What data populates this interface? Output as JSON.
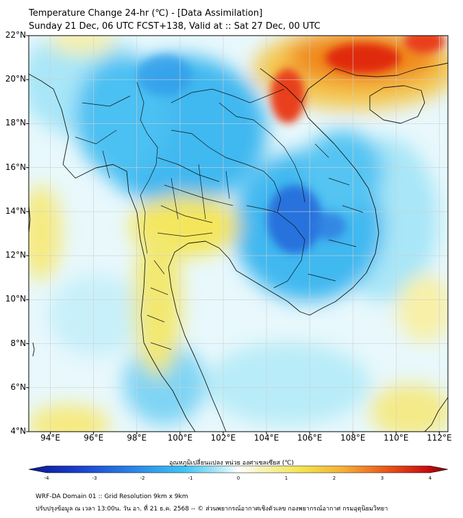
{
  "header": {
    "title_line1": "Temperature Change 24-hr (℃) - [Data Assimilation]",
    "title_line2": "Sunday 21 Dec, 06 UTC FCST+138, Valid at :: Sat 27 Dec, 00 UTC"
  },
  "map": {
    "lat_labels": [
      "22°N",
      "20°N",
      "18°N",
      "16°N",
      "14°N",
      "12°N",
      "10°N",
      "8°N",
      "6°N",
      "4°N"
    ],
    "lon_labels": [
      "94°E",
      "96°E",
      "98°E",
      "100°E",
      "102°E",
      "104°E",
      "106°E",
      "108°E",
      "110°E",
      "112°E"
    ],
    "colors": {
      "cold_deep": "#1e60d8",
      "cold": "#3fb8f0",
      "cool": "#9fe0f6",
      "neutral": "#e8f8fc",
      "warm": "#f4e65c",
      "hot": "#f08a1e",
      "very_hot": "#e02a10",
      "border": "#111111"
    }
  },
  "colorbar": {
    "title": "อุณหภูมิเปลี่ยนแปลง หน่วย องศาเซลเซียส (℃)",
    "ticks": [
      "-4",
      "-3",
      "-2",
      "-1",
      "0",
      "1",
      "2",
      "3",
      "4"
    ]
  },
  "footer": {
    "line1": "WRF-DA Domain 01 :: Grid Resolution 9km x 9km",
    "line2": "ปรับปรุงข้อมูล ณ เวลา 13:00น. วัน อา. ที่ 21 ธ.ค. 2568 -- © ส่วนพยากรณ์อากาศเชิงตัวเลข กองพยากรณ์อากาศ กรมอุตุนิยมวิทยา"
  }
}
